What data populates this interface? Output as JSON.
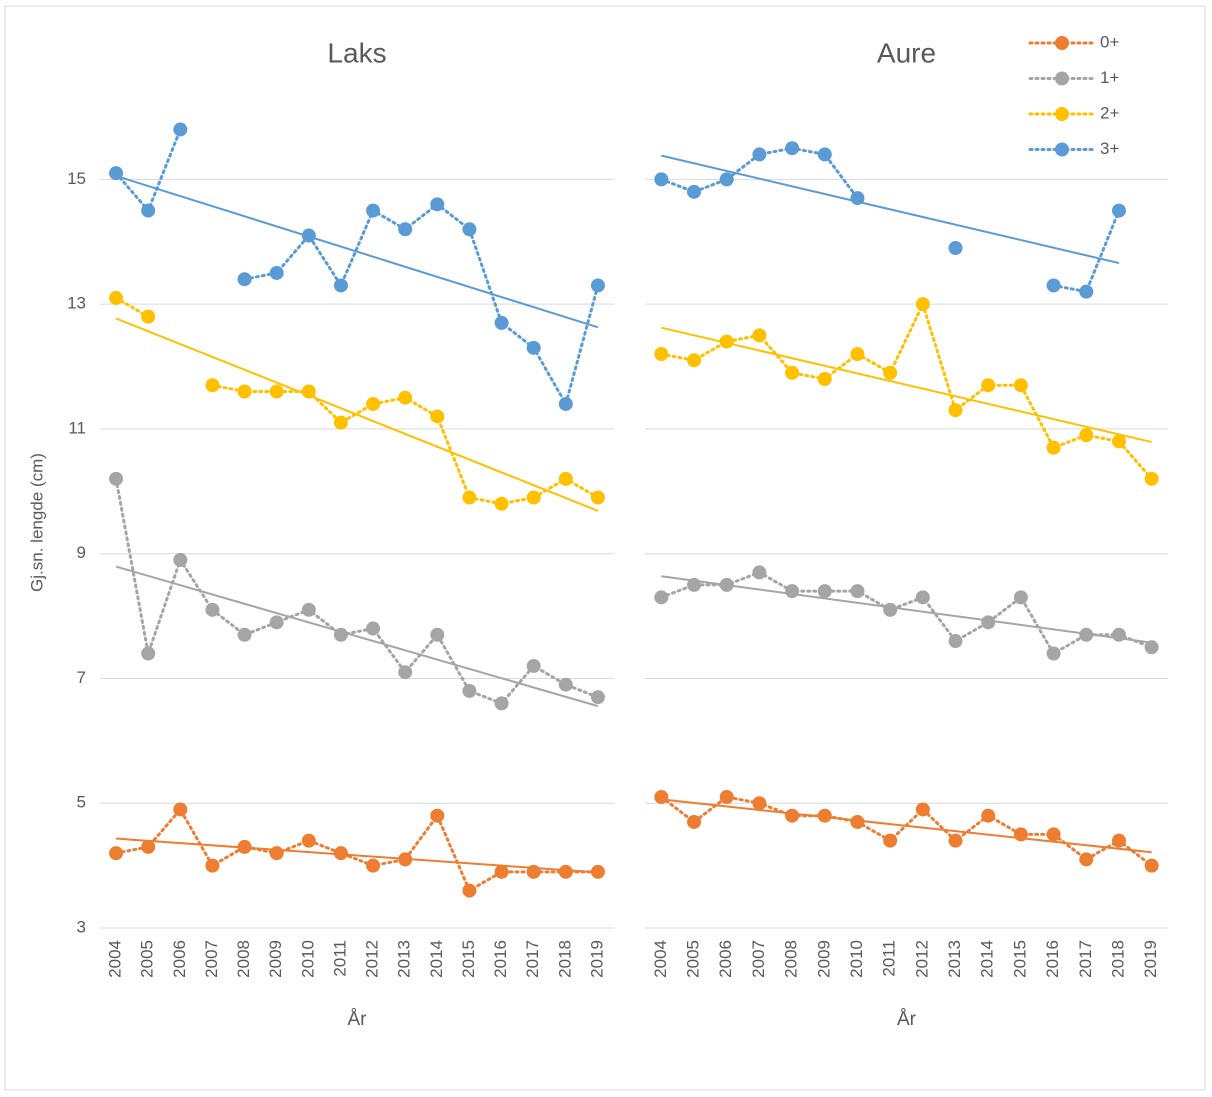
{
  "chart_data": [
    {
      "type": "line",
      "title": "Laks",
      "ylabel": "Gj.sn. lengde (cm)",
      "xlabel": "År",
      "categories": [
        "2004",
        "2005",
        "2006",
        "2007",
        "2008",
        "2009",
        "2010",
        "2011",
        "2012",
        "2013",
        "2014",
        "2015",
        "2016",
        "2017",
        "2018",
        "2019"
      ],
      "ylim": [
        3,
        16
      ],
      "yticks": [
        3,
        5,
        7,
        9,
        11,
        13,
        15
      ],
      "grid": true,
      "trendline": true,
      "legend": false,
      "series": [
        {
          "color": "#ed7d31",
          "values": [
            4.2,
            4.3,
            4.9,
            4.0,
            4.3,
            4.2,
            4.4,
            4.2,
            4.0,
            4.1,
            4.8,
            3.6,
            3.9,
            3.9,
            3.9,
            3.9
          ]
        },
        {
          "color": "#a5a5a5",
          "values": [
            10.2,
            7.4,
            8.9,
            8.1,
            7.7,
            7.9,
            8.1,
            7.7,
            7.8,
            7.1,
            7.7,
            6.8,
            6.6,
            7.2,
            6.9,
            6.7
          ]
        },
        {
          "color": "#ffc000",
          "values": [
            13.1,
            12.8,
            null,
            11.7,
            11.6,
            11.6,
            11.6,
            11.1,
            11.4,
            11.5,
            11.2,
            9.9,
            9.8,
            9.9,
            10.2,
            9.9
          ]
        },
        {
          "color": "#5b9bd5",
          "values": [
            15.1,
            14.5,
            15.8,
            null,
            13.4,
            13.5,
            14.1,
            13.3,
            14.5,
            14.2,
            14.6,
            14.2,
            12.7,
            12.3,
            11.4,
            13.3
          ]
        }
      ]
    },
    {
      "type": "line",
      "title": "Aure",
      "xlabel": "År",
      "categories": [
        "2004",
        "2005",
        "2006",
        "2007",
        "2008",
        "2009",
        "2010",
        "2011",
        "2012",
        "2013",
        "2014",
        "2015",
        "2016",
        "2017",
        "2018",
        "2019"
      ],
      "ylim": [
        3,
        16
      ],
      "yticks": [
        3,
        5,
        7,
        9,
        11,
        13,
        15
      ],
      "grid": true,
      "trendline": true,
      "legend": "top-right",
      "series": [
        {
          "name": "0+",
          "color": "#ed7d31",
          "values": [
            5.1,
            4.7,
            5.1,
            5.0,
            4.8,
            4.8,
            4.7,
            4.4,
            4.9,
            4.4,
            4.8,
            4.5,
            4.5,
            4.1,
            4.4,
            4.0
          ]
        },
        {
          "name": "1+",
          "color": "#a5a5a5",
          "values": [
            8.3,
            8.5,
            8.5,
            8.7,
            8.4,
            8.4,
            8.4,
            8.1,
            8.3,
            7.6,
            7.9,
            8.3,
            7.4,
            7.7,
            7.7,
            7.5
          ]
        },
        {
          "name": "2+",
          "color": "#ffc000",
          "values": [
            12.2,
            12.1,
            12.4,
            12.5,
            11.9,
            11.8,
            12.2,
            11.9,
            13.0,
            11.3,
            11.7,
            11.7,
            10.7,
            10.9,
            10.8,
            10.2
          ]
        },
        {
          "name": "3+",
          "color": "#5b9bd5",
          "values": [
            15.0,
            14.8,
            15.0,
            15.4,
            15.5,
            15.4,
            14.7,
            null,
            null,
            13.9,
            null,
            null,
            13.3,
            13.2,
            14.5,
            null
          ]
        }
      ]
    }
  ]
}
